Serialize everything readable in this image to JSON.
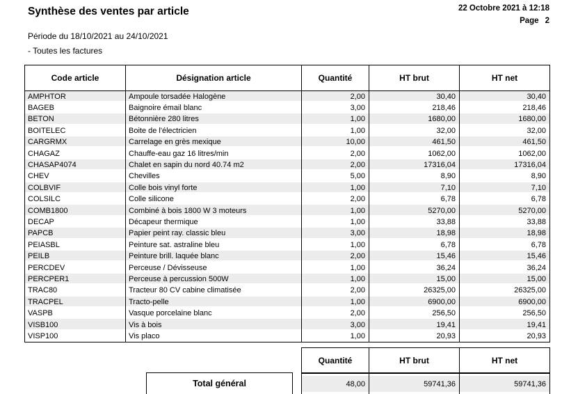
{
  "report": {
    "title": "Synthèse des ventes par article",
    "datetime": "22 Octobre 2021 à 12:18",
    "page_label": "Page",
    "page_number": "2",
    "period": "Période du 18/10/2021 au 24/10/2021",
    "filter": "- Toutes les factures"
  },
  "table": {
    "headers": [
      "Code article",
      "Désignation article",
      "Quantité",
      "HT brut",
      "HT net"
    ],
    "rows": [
      [
        "AMPHTOR",
        "Ampoule torsadée Halogène",
        "2,00",
        "30,40",
        "30,40"
      ],
      [
        "BAGEB",
        "Baignoire émail blanc",
        "3,00",
        "218,46",
        "218,46"
      ],
      [
        "BETON",
        "Bétonnière 280 litres",
        "1,00",
        "1680,00",
        "1680,00"
      ],
      [
        "BOITELEC",
        "Boite de l'électricien",
        "1,00",
        "32,00",
        "32,00"
      ],
      [
        "CARGRMX",
        "Carrelage en grès mexique",
        "10,00",
        "461,50",
        "461,50"
      ],
      [
        "CHAGAZ",
        "Chauffe-eau gaz 16 litres/min",
        "2,00",
        "1062,00",
        "1062,00"
      ],
      [
        "CHASAP4074",
        "Chalet en sapin du nord 40.74 m2",
        "2,00",
        "17316,04",
        "17316,04"
      ],
      [
        "CHEV",
        "Chevilles",
        "5,00",
        "8,90",
        "8,90"
      ],
      [
        "COLBVIF",
        "Colle bois vinyl forte",
        "1,00",
        "7,10",
        "7,10"
      ],
      [
        "COLSILC",
        "Colle silicone",
        "2,00",
        "6,78",
        "6,78"
      ],
      [
        "COMB1800",
        "Combiné à bois 1800 W 3 moteurs",
        "1,00",
        "5270,00",
        "5270,00"
      ],
      [
        "DECAP",
        "Décapeur thermique",
        "1,00",
        "33,88",
        "33,88"
      ],
      [
        "PAPCB",
        "Papier peint ray. classic bleu",
        "3,00",
        "18,98",
        "18,98"
      ],
      [
        "PEIASBL",
        "Peinture sat. astraline bleu",
        "1,00",
        "6,78",
        "6,78"
      ],
      [
        "PEILB",
        "Peinture brill. laquée blanc",
        "2,00",
        "15,46",
        "15,46"
      ],
      [
        "PERCDEV",
        "Perceuse / Dévisseuse",
        "1,00",
        "36,24",
        "36,24"
      ],
      [
        "PERCPER1",
        "Perceuse à percussion 500W",
        "1,00",
        "15,00",
        "15,00"
      ],
      [
        "TRAC80",
        "Tracteur 80 CV cabine climatisée",
        "2,00",
        "26325,00",
        "26325,00"
      ],
      [
        "TRACPEL",
        "Tracto-pelle",
        "1,00",
        "6900,00",
        "6900,00"
      ],
      [
        "VASPB",
        "Vasque porcelaine blanc",
        "2,00",
        "256,50",
        "256,50"
      ],
      [
        "VISB100",
        "Vis à bois",
        "3,00",
        "19,41",
        "19,41"
      ],
      [
        "VISP100",
        "Vis placo",
        "1,00",
        "20,93",
        "20,93"
      ]
    ]
  },
  "summary": {
    "headers": [
      "Quantité",
      "HT brut",
      "HT net"
    ],
    "total_label": "Total général",
    "values": [
      "48,00",
      "59741,36",
      "59741,36"
    ]
  },
  "colors": {
    "text": "#000000",
    "border": "#000000",
    "row_stripe": "#ececec",
    "background": "#ffffff"
  }
}
